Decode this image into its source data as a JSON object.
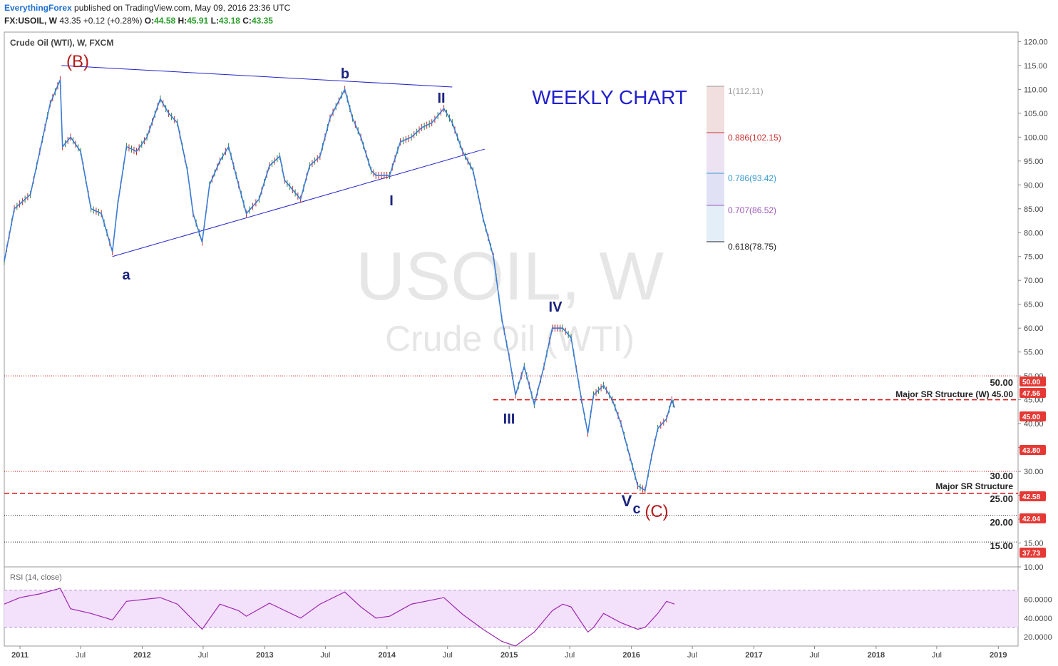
{
  "header": {
    "author": "EverythingForex",
    "published": "published on TradingView.com, May 09, 2016 23:36 UTC",
    "symbol": "FX:USOIL, W",
    "last": "43.35",
    "change": "+0.12 (+0.28%)",
    "open_label": "O:",
    "open": "44.58",
    "high_label": "H:",
    "high": "45.91",
    "low_label": "L:",
    "low": "43.18",
    "close_label": "C:",
    "close": "43.35"
  },
  "instrument": "Crude Oil (WTI), W, FXCM",
  "watermark": {
    "line1": "USOIL, W",
    "line2": "Crude Oil (WTI)"
  },
  "annotations": {
    "chart_label": "WEEKLY CHART",
    "B": "(B)",
    "a": "a",
    "b": "b",
    "I": "I",
    "II": "II",
    "III": "III",
    "IV": "IV",
    "V": "V",
    "c": "c",
    "C": "(C)",
    "sr_upper": "Major SR Structure (W) 45.00",
    "sr_lower": "Major SR Structure",
    "lvl50": "50.00",
    "lvl30": "30.00",
    "lvl25": "25.00",
    "lvl20": "20.00",
    "lvl15": "15.00"
  },
  "fibonacci": [
    {
      "label": "1(112.11)",
      "color": "#999999"
    },
    {
      "label": "0.886(102.15)",
      "color": "#cc3333"
    },
    {
      "label": "0.786(93.42)",
      "color": "#3a9bd0"
    },
    {
      "label": "0.707(86.52)",
      "color": "#9b59b6"
    },
    {
      "label": "0.618(78.75)",
      "color": "#222222"
    }
  ],
  "price_tags": [
    "50.00",
    "47.56",
    "45.00",
    "43.80",
    "42.58",
    "42.04",
    "37.73"
  ],
  "rsi_label": "RSI (14, close)",
  "colors": {
    "up": "#2e7d32",
    "down": "#c62828",
    "line": "#3a7bd5",
    "trend": "#2222cc",
    "wave": "#1a237e",
    "corrective": "#b71c1c",
    "rsi": "#9c27b0",
    "rsi_band": "#f3e0fb"
  },
  "chart_data": {
    "type": "line",
    "title": "Crude Oil (WTI), W, FXCM",
    "price_axis": {
      "ylim": [
        10,
        122
      ],
      "ticks": [
        "120.00",
        "115.00",
        "110.00",
        "105.00",
        "100.00",
        "95.00",
        "90.00",
        "85.00",
        "80.00",
        "75.00",
        "70.00",
        "65.00",
        "60.00",
        "55.00",
        "50.00",
        "45.00",
        "40.00",
        "35.00",
        "30.00",
        "25.00",
        "20.00",
        "15.00",
        "10.00"
      ]
    },
    "time_axis": {
      "range": [
        "2010-11-15",
        "2019-03-01"
      ],
      "ticks": [
        {
          "t": "2011-01-01",
          "label": "2011",
          "bold": true
        },
        {
          "t": "2011-07-01",
          "label": "Jul"
        },
        {
          "t": "2012-01-01",
          "label": "2012",
          "bold": true
        },
        {
          "t": "2012-07-01",
          "label": "Jul"
        },
        {
          "t": "2013-01-01",
          "label": "2013",
          "bold": true
        },
        {
          "t": "2013-07-01",
          "label": "Jul"
        },
        {
          "t": "2014-01-01",
          "label": "2014",
          "bold": true
        },
        {
          "t": "2014-07-01",
          "label": "Jul"
        },
        {
          "t": "2015-01-01",
          "label": "2015",
          "bold": true
        },
        {
          "t": "2015-07-01",
          "label": "Jul"
        },
        {
          "t": "2016-01-01",
          "label": "2016",
          "bold": true
        },
        {
          "t": "2016-07-01",
          "label": "Jul"
        },
        {
          "t": "2017-01-01",
          "label": "2017",
          "bold": true
        },
        {
          "t": "2017-07-01",
          "label": "Jul"
        },
        {
          "t": "2018-01-01",
          "label": "2018",
          "bold": true
        },
        {
          "t": "2018-07-01",
          "label": "Jul"
        },
        {
          "t": "2019-01-01",
          "label": "2019",
          "bold": true
        }
      ]
    },
    "price_series": {
      "name": "",
      "points": [
        [
          "2010-11-15",
          74
        ],
        [
          "2010-12-15",
          85
        ],
        [
          "2011-02-01",
          88
        ],
        [
          "2011-03-01",
          97
        ],
        [
          "2011-04-01",
          107
        ],
        [
          "2011-05-01",
          112
        ],
        [
          "2011-05-08",
          98
        ],
        [
          "2011-06-01",
          100
        ],
        [
          "2011-07-01",
          97
        ],
        [
          "2011-08-01",
          85
        ],
        [
          "2011-09-01",
          84
        ],
        [
          "2011-10-04",
          76
        ],
        [
          "2011-10-20",
          86
        ],
        [
          "2011-11-15",
          98
        ],
        [
          "2011-12-15",
          97
        ],
        [
          "2012-01-15",
          100
        ],
        [
          "2012-02-24",
          108
        ],
        [
          "2012-03-20",
          105
        ],
        [
          "2012-04-15",
          103
        ],
        [
          "2012-05-15",
          93
        ],
        [
          "2012-06-01",
          84
        ],
        [
          "2012-06-28",
          78
        ],
        [
          "2012-07-20",
          90
        ],
        [
          "2012-08-20",
          95
        ],
        [
          "2012-09-15",
          98
        ],
        [
          "2012-10-15",
          90
        ],
        [
          "2012-11-07",
          84
        ],
        [
          "2012-12-15",
          87
        ],
        [
          "2013-01-15",
          94
        ],
        [
          "2013-02-15",
          96
        ],
        [
          "2013-03-01",
          91
        ],
        [
          "2013-04-18",
          87
        ],
        [
          "2013-05-15",
          94
        ],
        [
          "2013-06-15",
          96
        ],
        [
          "2013-07-15",
          104
        ],
        [
          "2013-08-28",
          110
        ],
        [
          "2013-09-20",
          104
        ],
        [
          "2013-10-15",
          100
        ],
        [
          "2013-11-15",
          93
        ],
        [
          "2013-11-29",
          92
        ],
        [
          "2014-01-09",
          92
        ],
        [
          "2014-02-10",
          99
        ],
        [
          "2014-03-15",
          100
        ],
        [
          "2014-04-15",
          102
        ],
        [
          "2014-05-15",
          103
        ],
        [
          "2014-06-20",
          106
        ],
        [
          "2014-07-15",
          103
        ],
        [
          "2014-08-15",
          97
        ],
        [
          "2014-09-15",
          93
        ],
        [
          "2014-10-15",
          83
        ],
        [
          "2014-11-15",
          75
        ],
        [
          "2014-12-10",
          62
        ],
        [
          "2015-01-01",
          54
        ],
        [
          "2015-01-20",
          46
        ],
        [
          "2015-02-15",
          52
        ],
        [
          "2015-03-17",
          44
        ],
        [
          "2015-04-15",
          52
        ],
        [
          "2015-05-10",
          60
        ],
        [
          "2015-06-10",
          60
        ],
        [
          "2015-07-05",
          58
        ],
        [
          "2015-08-05",
          45
        ],
        [
          "2015-08-24",
          38
        ],
        [
          "2015-09-10",
          46
        ],
        [
          "2015-10-10",
          48
        ],
        [
          "2015-11-05",
          45
        ],
        [
          "2015-12-01",
          40
        ],
        [
          "2015-12-20",
          35
        ],
        [
          "2016-01-20",
          27
        ],
        [
          "2016-02-11",
          26
        ],
        [
          "2016-03-01",
          33
        ],
        [
          "2016-03-20",
          39
        ],
        [
          "2016-04-15",
          41
        ],
        [
          "2016-05-01",
          45
        ],
        [
          "2016-05-09",
          43.35
        ]
      ]
    },
    "rsi_series": {
      "name": "RSI (14, close)",
      "ylim": [
        10,
        95
      ],
      "levels": [
        70,
        30
      ],
      "ticks": [
        "60.0000",
        "40.0000",
        "20.0000"
      ],
      "points": [
        [
          "2010-11-15",
          55
        ],
        [
          "2011-01-01",
          62
        ],
        [
          "2011-03-01",
          66
        ],
        [
          "2011-05-01",
          72
        ],
        [
          "2011-06-01",
          50
        ],
        [
          "2011-08-01",
          45
        ],
        [
          "2011-10-04",
          38
        ],
        [
          "2011-11-15",
          58
        ],
        [
          "2012-02-24",
          62
        ],
        [
          "2012-04-15",
          55
        ],
        [
          "2012-06-28",
          28
        ],
        [
          "2012-08-20",
          55
        ],
        [
          "2012-10-15",
          48
        ],
        [
          "2012-11-07",
          42
        ],
        [
          "2013-01-15",
          56
        ],
        [
          "2013-04-18",
          40
        ],
        [
          "2013-06-15",
          55
        ],
        [
          "2013-08-28",
          68
        ],
        [
          "2013-10-15",
          52
        ],
        [
          "2013-11-29",
          40
        ],
        [
          "2014-01-09",
          42
        ],
        [
          "2014-03-15",
          55
        ],
        [
          "2014-06-20",
          62
        ],
        [
          "2014-08-15",
          44
        ],
        [
          "2014-10-15",
          28
        ],
        [
          "2014-12-10",
          15
        ],
        [
          "2015-01-20",
          10
        ],
        [
          "2015-03-17",
          25
        ],
        [
          "2015-05-10",
          48
        ],
        [
          "2015-06-10",
          55
        ],
        [
          "2015-07-05",
          52
        ],
        [
          "2015-08-24",
          25
        ],
        [
          "2015-09-10",
          30
        ],
        [
          "2015-10-10",
          45
        ],
        [
          "2015-12-01",
          35
        ],
        [
          "2016-01-20",
          28
        ],
        [
          "2016-02-11",
          30
        ],
        [
          "2016-03-20",
          45
        ],
        [
          "2016-04-15",
          58
        ],
        [
          "2016-05-09",
          55
        ]
      ]
    },
    "horizontal_lines": [
      {
        "y": 50,
        "style": "dotted",
        "color": "#cc2222"
      },
      {
        "y": 45,
        "style": "dashed",
        "color": "#dd1111"
      },
      {
        "y": 30,
        "style": "dotted",
        "color": "#cc2222"
      },
      {
        "y": 25.4,
        "style": "dashed",
        "color": "#dd1111"
      },
      {
        "y": 20.8,
        "style": "dotted",
        "color": "#222222"
      },
      {
        "y": 15.2,
        "style": "dotted",
        "color": "#222222"
      }
    ],
    "trend_lines": [
      {
        "from": [
          "2011-05-05",
          115
        ],
        "to": [
          "2014-07-15",
          110.5
        ]
      },
      {
        "from": [
          "2011-10-04",
          75
        ],
        "to": [
          "2014-10-20",
          97.5
        ]
      }
    ]
  }
}
